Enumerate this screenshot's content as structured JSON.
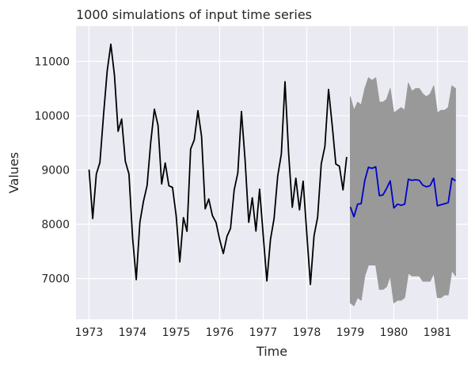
{
  "chart_data": {
    "type": "line",
    "title": "1000 simulations of input time series",
    "xlabel": "Time",
    "ylabel": "Values",
    "xlim": [
      1972.7,
      1981.7
    ],
    "ylim": [
      6250,
      11650
    ],
    "x_ticks": [
      1973,
      1974,
      1975,
      1976,
      1977,
      1978,
      1979,
      1980,
      1981
    ],
    "x_tick_labels": [
      "1973",
      "1974",
      "1975",
      "1976",
      "1977",
      "1978",
      "1979",
      "1980",
      "1981"
    ],
    "y_ticks": [
      7000,
      8000,
      9000,
      10000,
      11000
    ],
    "y_tick_labels": [
      "7000",
      "8000",
      "9000",
      "10000",
      "11000"
    ],
    "grid": true,
    "colors": {
      "background": "#eaeaf2",
      "grid": "#ffffff",
      "history": "#000000",
      "simulations": "#999999",
      "mean": "#0000cc"
    },
    "series": [
      {
        "key": "history",
        "x_start": 1973.0,
        "x_step": 0.08333,
        "values": [
          9007,
          8106,
          8928,
          9137,
          10017,
          10826,
          11317,
          10744,
          9713,
          9938,
          9161,
          8927,
          7750,
          6981,
          8038,
          8422,
          8714,
          9512,
          10120,
          9823,
          8743,
          9129,
          8710,
          8680,
          8162,
          7306,
          8124,
          7870,
          9387,
          9556,
          10093,
          9620,
          8285,
          8466,
          8160,
          8034,
          7717,
          7461,
          7776,
          7925,
          8634,
          8945,
          10078,
          9179,
          8037,
          8488,
          7874,
          8647,
          7792,
          6957,
          7726,
          8106,
          8890,
          9299,
          10625,
          9302,
          8314,
          8850,
          8265,
          8796,
          7836,
          6892,
          7791,
          8129,
          9115,
          9434,
          10484,
          9827,
          9110,
          9070,
          8633,
          9240
        ]
      },
      {
        "key": "mean",
        "x_start": 1979.0,
        "x_step": 0.08333,
        "values": [
          8320,
          8140,
          8370,
          8380,
          8810,
          9050,
          9030,
          9060,
          8530,
          8540,
          8660,
          8800,
          8300,
          8370,
          8350,
          8370,
          8830,
          8810,
          8820,
          8810,
          8720,
          8690,
          8710,
          8850,
          8340,
          8360,
          8380,
          8400,
          8850,
          8800
        ]
      }
    ],
    "simulation_band": {
      "x_start": 1979.0,
      "x_step": 0.08333,
      "upper": [
        10350,
        10100,
        10250,
        10200,
        10500,
        10700,
        10650,
        10700,
        10250,
        10250,
        10300,
        10500,
        10050,
        10100,
        10150,
        10100,
        10600,
        10450,
        10500,
        10500,
        10400,
        10350,
        10400,
        10550,
        10050,
        10100,
        10100,
        10150,
        10550,
        10500
      ],
      "lower": [
        6550,
        6500,
        6650,
        6600,
        7050,
        7250,
        7250,
        7250,
        6800,
        6800,
        6850,
        7050,
        6550,
        6600,
        6600,
        6650,
        7100,
        7050,
        7050,
        7050,
        6950,
        6950,
        6950,
        7100,
        6650,
        6650,
        6700,
        6700,
        7150,
        7050
      ]
    }
  }
}
